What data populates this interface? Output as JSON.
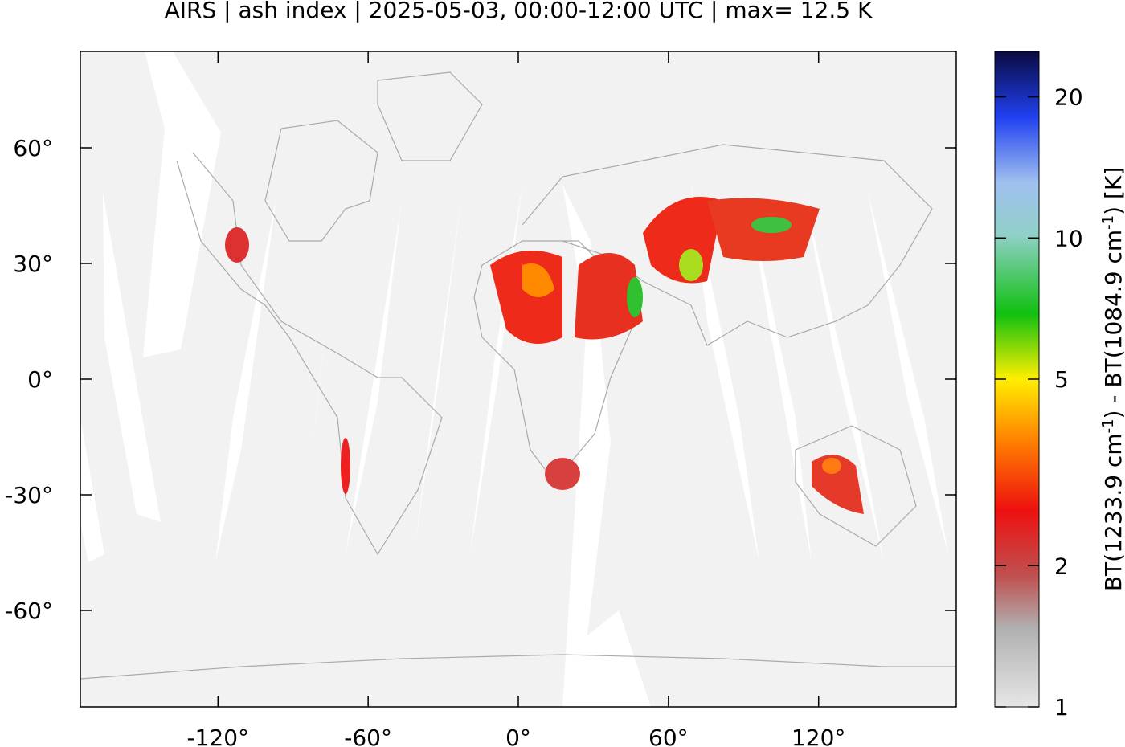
{
  "map_data": {
    "title": "AIRS | ash index | 2025-05-03, 00:00-12:00 UTC | max= 12.5 K",
    "xlim": [
      -175,
      175
    ],
    "ylim": [
      -85,
      85
    ],
    "xticks": [
      {
        "value": -120,
        "label": "-120°"
      },
      {
        "value": -60,
        "label": "-60°"
      },
      {
        "value": 0,
        "label": "0°"
      },
      {
        "value": 60,
        "label": "60°"
      },
      {
        "value": 120,
        "label": "120°"
      }
    ],
    "yticks": [
      {
        "value": 60,
        "label": "60°"
      },
      {
        "value": 30,
        "label": "30°"
      },
      {
        "value": 0,
        "label": "0°"
      },
      {
        "value": -30,
        "label": "-30°"
      },
      {
        "value": -60,
        "label": "-60°"
      }
    ],
    "colorbar": {
      "label": [
        "BT(1233.9 cm",
        "-1",
        ") - BT(1084.9 cm",
        "-1",
        ") [K]"
      ],
      "lim": [
        1,
        25
      ],
      "log": true,
      "ticks": [
        1,
        2,
        5,
        10,
        20
      ]
    }
  }
}
